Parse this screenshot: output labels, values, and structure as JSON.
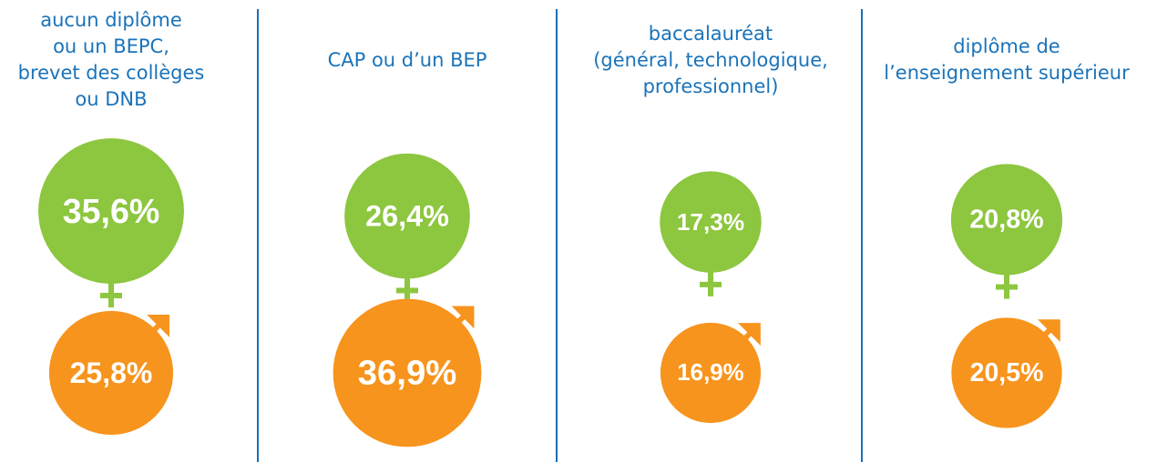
{
  "chart_data": {
    "type": "bubble",
    "categories": [
      "aucun diplôme\nou un BEPC,\nbrevet des collèges\nou DNB",
      "CAP ou d’un BEP",
      "baccalauréat\n(général, technologique,\nprofessionnel)",
      "diplôme de\nl’enseignement supérieur"
    ],
    "series": [
      {
        "color": "#8dc63f",
        "values": [
          35.6,
          26.4,
          17.3,
          20.8
        ],
        "value_labels": [
          "35,6%",
          "26,4%",
          "17,3%",
          "20,8%"
        ]
      },
      {
        "color": "#f7941d",
        "values": [
          25.8,
          36.9,
          16.9,
          20.5
        ],
        "value_labels": [
          "25,8%",
          "36,9%",
          "16,9%",
          "20,5%"
        ]
      }
    ]
  }
}
